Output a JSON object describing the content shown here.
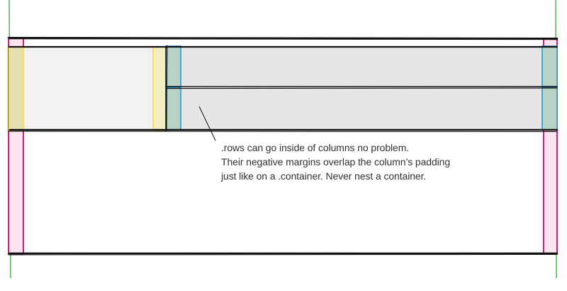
{
  "caption": {
    "lines": [
      ".rows can go inside of columns no problem.",
      "Their negative margins overlap the column’s padding",
      "just like on a .container. Never nest a container."
    ]
  },
  "colors": {
    "container_guide": "#5cb85c",
    "row_outline": "#d9177a",
    "row_fill": "#fbe3f0",
    "column_padding": "#ffe13a",
    "column_padding_fill": "#f2edc4",
    "nested_row_outline": "#3aa0e0",
    "nested_row_fill": "#b8d2c3",
    "content_fill": "#f2f2f2",
    "nested_content_fill": "#e6e6e6",
    "sketch_line": "#111111"
  }
}
